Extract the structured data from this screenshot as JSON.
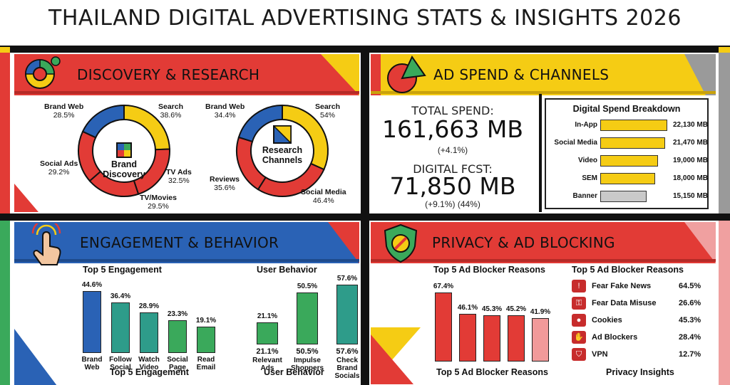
{
  "title": "THAILAND DIGITAL ADVERTISING STATS & INSIGHTS 2026",
  "colors": {
    "red": "#e23b36",
    "yellow": "#f5cc14",
    "blue": "#2a62b5",
    "green": "#3aa95b",
    "gray": "#9a9a9a",
    "teal": "#2e9c8a"
  },
  "discovery": {
    "title": "DISCOVERY & RESEARCH",
    "brand": {
      "center": "Brand Discovery",
      "labels": [
        {
          "name": "Brand Web",
          "value": "28.5%"
        },
        {
          "name": "Search",
          "value": "38.6%"
        },
        {
          "name": "Social Ads",
          "value": "29.2%"
        },
        {
          "name": "TV Ads",
          "value": "32.5%"
        },
        {
          "name": "TV/Movies",
          "value": "29.5%"
        }
      ]
    },
    "research": {
      "center": "Research Channels",
      "labels": [
        {
          "name": "Brand Web",
          "value": "34.4%"
        },
        {
          "name": "Search",
          "value": "54%"
        },
        {
          "name": "Reviews",
          "value": "35.6%"
        },
        {
          "name": "Social Media",
          "value": "46.4%"
        }
      ]
    }
  },
  "adspend": {
    "title": "AD SPEND & CHANNELS",
    "total_label": "TOTAL SPEND:",
    "total_value": "161,663 MB",
    "total_change": "(+4.1%)",
    "digital_label": "DIGITAL FCST:",
    "digital_value": "71,850 MB",
    "digital_change": "(+9.1%) (44%)",
    "breakdown_title": "Digital Spend Breakdown"
  },
  "engagement": {
    "title": "ENGAGEMENT & BEHAVIOR",
    "left_title": "Top 5 Engagement",
    "left_footer": "Top 5 Engagement",
    "right_title": "User Behavior",
    "right_footer": "User Behavior"
  },
  "privacy": {
    "title": "PRIVACY & AD BLOCKING",
    "left_title": "Top 5 Ad Blocker Reasons",
    "left_footer": "Top 5 Ad Blocker Reasons",
    "right_title": "Top 5 Ad Blocker Reasons",
    "right_footer": "Privacy Insights",
    "insights": [
      {
        "name": "Fear Fake News",
        "value": "64.5%",
        "icon": "warning-icon"
      },
      {
        "name": "Fear Data Misuse",
        "value": "26.6%",
        "icon": "lock-icon"
      },
      {
        "name": "Cookies",
        "value": "45.3%",
        "icon": "cookie-icon"
      },
      {
        "name": "Ad Blockers",
        "value": "28.4%",
        "icon": "block-hand-icon"
      },
      {
        "name": "VPN",
        "value": "12.7%",
        "icon": "shield-icon"
      }
    ]
  },
  "chart_data": [
    {
      "type": "pie",
      "title": "Brand Discovery",
      "categories": [
        "Search",
        "TV Ads",
        "TV/Movies",
        "Social Ads",
        "Brand Web"
      ],
      "values": [
        38.6,
        32.5,
        29.5,
        29.2,
        28.5
      ]
    },
    {
      "type": "pie",
      "title": "Research Channels",
      "categories": [
        "Search",
        "Social Media",
        "Reviews",
        "Brand Web"
      ],
      "values": [
        54,
        46.4,
        35.6,
        34.4
      ]
    },
    {
      "type": "bar",
      "title": "Digital Spend Breakdown",
      "categories": [
        "In-App",
        "Social Media",
        "Video",
        "SEM",
        "Banner"
      ],
      "values": [
        22130,
        21470,
        19000,
        18000,
        15150
      ],
      "value_labels": [
        "22,130 MB",
        "21,470 MB",
        "19,000 MB",
        "18,000 MB",
        "15,150 MB"
      ],
      "xlim": [
        0,
        23000
      ]
    },
    {
      "type": "bar",
      "title": "Top 5 Engagement",
      "categories": [
        "Brand Web",
        "Follow Social",
        "Watch Video",
        "Social Page",
        "Read Email"
      ],
      "values": [
        44.6,
        36.4,
        28.9,
        23.3,
        19.1
      ],
      "value_labels": [
        "44.6%",
        "36.4%",
        "28.9%",
        "23.3%",
        "19.1%"
      ],
      "ylim": [
        0,
        48
      ]
    },
    {
      "type": "bar",
      "title": "User Behavior",
      "categories": [
        "Relevant Ads",
        "Impulse Shoppers",
        "Check Brand Socials"
      ],
      "values": [
        21.1,
        50.5,
        57.6
      ],
      "value_labels": [
        "21.1%",
        "50.5%",
        "57.6%"
      ],
      "ylim": [
        0,
        62
      ]
    },
    {
      "type": "bar",
      "title": "Top 5 Ad Blocker Reasons",
      "categories": [
        "",
        "",
        "",
        "",
        ""
      ],
      "values": [
        67.4,
        46.1,
        45.3,
        45.2,
        41.9
      ],
      "value_labels": [
        "67.4%",
        "46.1%",
        "45.3%",
        "45.2%",
        "41.9%"
      ],
      "ylim": [
        0,
        72
      ]
    }
  ]
}
